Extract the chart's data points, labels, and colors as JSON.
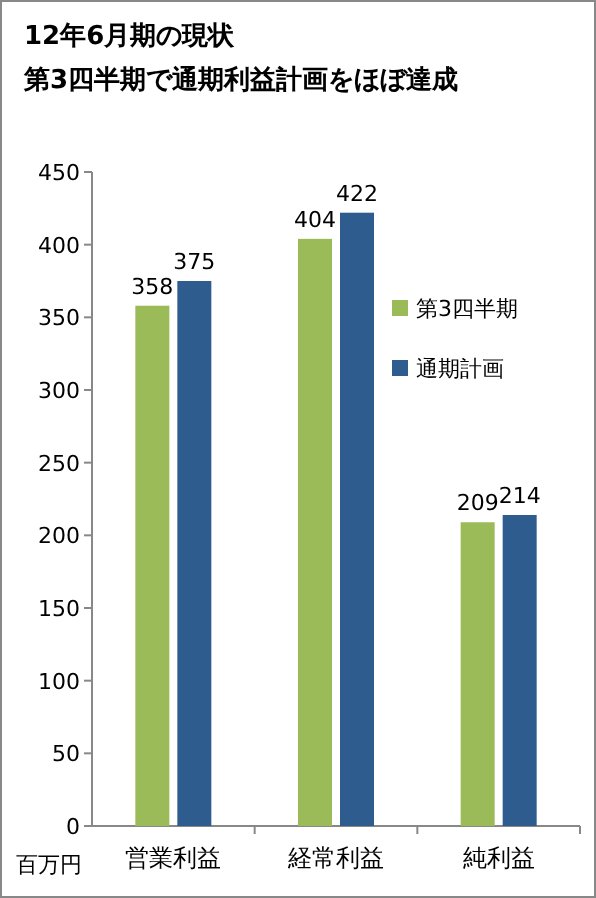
{
  "chart_data": {
    "type": "bar",
    "title": "12年6月期の現状",
    "subtitle": "第3四半期で通期利益計画をほぼ達成",
    "ylabel": "百万円",
    "categories": [
      "営業利益",
      "経常利益",
      "純利益"
    ],
    "series": [
      {
        "name": "第3四半期",
        "color": "#9bbb59",
        "values": [
          358,
          404,
          209
        ]
      },
      {
        "name": "通期計画",
        "color": "#2e5c8f",
        "values": [
          375,
          422,
          214
        ]
      }
    ],
    "ylim": [
      0,
      450
    ],
    "yticks": [
      0,
      50,
      100,
      150,
      200,
      250,
      300,
      350,
      400,
      450
    ],
    "data_labels": true,
    "legend": "right",
    "grid": false
  }
}
